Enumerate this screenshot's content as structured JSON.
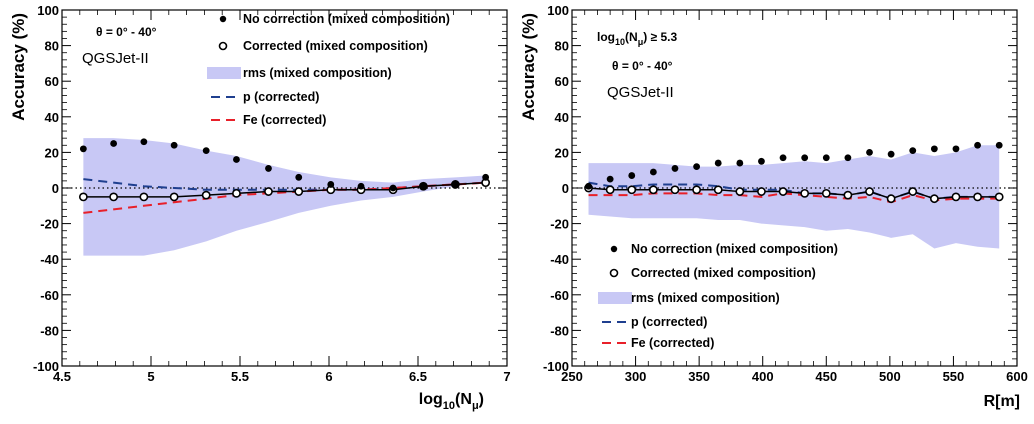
{
  "chart_data": [
    {
      "type": "line",
      "xlabel": "log10(Nμ)",
      "xlabel_parts": {
        "main": "log",
        "sub": "10",
        "open": "(N",
        "subsym": "μ",
        "close": ")"
      },
      "ylabel": "Accuracy (%)",
      "xlim": [
        4.5,
        7
      ],
      "ylim": [
        -100,
        100
      ],
      "xticks": [
        4.5,
        5,
        5.5,
        6,
        6.5,
        7
      ],
      "xtick_labels": [
        "4.5",
        "5",
        "5.5",
        "6",
        "6.5",
        "7"
      ],
      "yticks": [
        -100,
        -80,
        -60,
        -40,
        -20,
        0,
        20,
        40,
        60,
        80,
        100
      ],
      "ytick_labels": [
        "-100",
        "-80",
        "-60",
        "-40",
        "-20",
        "0",
        "20",
        "40",
        "60",
        "80",
        "100"
      ],
      "annotations": [
        {
          "id": "theta",
          "text": "θ = 0° - 40°"
        },
        {
          "id": "model",
          "text": "QGSJet-II"
        }
      ],
      "legend_position": "top-right",
      "legend": [
        {
          "key": "no_correction",
          "label": "No correction (mixed composition)"
        },
        {
          "key": "corrected",
          "label": "Corrected (mixed composition)"
        },
        {
          "key": "rms",
          "label": "rms (mixed composition)"
        },
        {
          "key": "p",
          "label": "p (corrected)"
        },
        {
          "key": "fe",
          "label": "Fe (corrected)"
        }
      ],
      "colors": {
        "rms": "#c8c8f5",
        "p": "#1f3f8f",
        "fe": "#e8202a",
        "markers": "#000000"
      },
      "zero_line": true,
      "series": {
        "no_correction": {
          "x": [
            4.62,
            4.79,
            4.96,
            5.13,
            5.31,
            5.48,
            5.66,
            5.83,
            6.01,
            6.18,
            6.36,
            6.53,
            6.71,
            6.88
          ],
          "y": [
            22,
            25,
            26,
            24,
            21,
            16,
            11,
            6,
            2,
            1,
            0,
            1,
            2,
            6
          ]
        },
        "corrected": {
          "x": [
            4.62,
            4.79,
            4.96,
            5.13,
            5.31,
            5.48,
            5.66,
            5.83,
            6.01,
            6.18,
            6.36,
            6.53,
            6.71,
            6.88
          ],
          "y": [
            -5,
            -5,
            -5,
            -5,
            -4,
            -3,
            -2,
            -2,
            -1,
            -1,
            -1,
            1,
            2,
            3
          ]
        },
        "rms_upper": {
          "x": [
            4.62,
            4.79,
            4.96,
            5.13,
            5.31,
            5.48,
            5.66,
            5.83,
            6.01,
            6.18,
            6.36,
            6.53,
            6.71,
            6.88
          ],
          "y": [
            28,
            28,
            27,
            25,
            21,
            18,
            13,
            9,
            6,
            4,
            3,
            5,
            6,
            7
          ]
        },
        "rms_lower": {
          "x": [
            4.62,
            4.79,
            4.96,
            5.13,
            5.31,
            5.48,
            5.66,
            5.83,
            6.01,
            6.18,
            6.36,
            6.53,
            6.71,
            6.88
          ],
          "y": [
            -38,
            -38,
            -38,
            -35,
            -30,
            -24,
            -19,
            -14,
            -10,
            -7,
            -5,
            -2,
            1,
            4
          ]
        },
        "p": {
          "x": [
            4.62,
            4.79,
            4.96,
            5.13,
            5.31,
            5.48,
            5.66,
            5.83,
            6.01,
            6.18,
            6.36,
            6.53,
            6.71,
            6.88
          ],
          "y": [
            5,
            3,
            1,
            0,
            -1,
            -1,
            -1,
            -1,
            -1,
            -1,
            0,
            1,
            2,
            3
          ]
        },
        "fe": {
          "x": [
            4.62,
            4.79,
            4.96,
            5.13,
            5.31,
            5.48,
            5.66,
            5.83,
            6.01,
            6.18,
            6.36,
            6.53,
            6.71,
            6.88
          ],
          "y": [
            -14,
            -12,
            -10,
            -8,
            -6,
            -4,
            -3,
            -2,
            -1,
            -1,
            0,
            1,
            2,
            3
          ]
        }
      }
    },
    {
      "type": "line",
      "xlabel": "R[m]",
      "ylabel": "Accuracy (%)",
      "xlim": [
        250,
        600
      ],
      "ylim": [
        -100,
        100
      ],
      "xticks": [
        250,
        300,
        350,
        400,
        450,
        500,
        550,
        600
      ],
      "xtick_labels": [
        "250",
        "300",
        "350",
        "400",
        "450",
        "500",
        "550",
        "600"
      ],
      "yticks": [
        -100,
        -80,
        -60,
        -40,
        -20,
        0,
        20,
        40,
        60,
        80,
        100
      ],
      "ytick_labels": [
        "-100",
        "-80",
        "-60",
        "-40",
        "-20",
        "0",
        "20",
        "40",
        "60",
        "80",
        "100"
      ],
      "annotations": [
        {
          "id": "cut",
          "text": "log10(Nμ) ≥ 5.3",
          "parts": {
            "main": "log",
            "sub": "10",
            "open": "(N",
            "subsym": "μ",
            "close": ") ≥ 5.3"
          }
        },
        {
          "id": "theta",
          "text": "θ = 0° - 40°"
        },
        {
          "id": "model",
          "text": "QGSJet-II"
        }
      ],
      "legend_position": "bottom-left",
      "legend": [
        {
          "key": "no_correction",
          "label": "No correction (mixed composition)"
        },
        {
          "key": "corrected",
          "label": "Corrected (mixed composition)"
        },
        {
          "key": "rms",
          "label": "rms (mixed composition)"
        },
        {
          "key": "p",
          "label": "p (corrected)"
        },
        {
          "key": "fe",
          "label": "Fe (corrected)"
        }
      ],
      "colors": {
        "rms": "#c8c8f5",
        "p": "#1f3f8f",
        "fe": "#e8202a",
        "markers": "#000000"
      },
      "zero_line": true,
      "series": {
        "no_correction": {
          "x": [
            263,
            280,
            297,
            314,
            331,
            348,
            365,
            382,
            399,
            416,
            433,
            450,
            467,
            484,
            501,
            518,
            535,
            552,
            569,
            586
          ],
          "y": [
            1,
            5,
            7,
            9,
            11,
            12,
            14,
            14,
            15,
            17,
            17,
            17,
            17,
            20,
            19,
            21,
            22,
            22,
            24,
            24
          ]
        },
        "corrected": {
          "x": [
            263,
            280,
            297,
            314,
            331,
            348,
            365,
            382,
            399,
            416,
            433,
            450,
            467,
            484,
            501,
            518,
            535,
            552,
            569,
            586
          ],
          "y": [
            0,
            -1,
            -1,
            -1,
            -1,
            -1,
            -1,
            -2,
            -2,
            -2,
            -3,
            -3,
            -4,
            -2,
            -6,
            -2,
            -6,
            -5,
            -5,
            -5
          ]
        },
        "rms_upper": {
          "x": [
            263,
            280,
            297,
            314,
            331,
            348,
            365,
            382,
            399,
            416,
            433,
            450,
            467,
            484,
            501,
            518,
            535,
            552,
            569,
            586
          ],
          "y": [
            14,
            14,
            14,
            14,
            13,
            12,
            12,
            13,
            13,
            14,
            15,
            14,
            16,
            18,
            16,
            20,
            18,
            20,
            24,
            24
          ]
        },
        "rms_lower": {
          "x": [
            263,
            280,
            297,
            314,
            331,
            348,
            365,
            382,
            399,
            416,
            433,
            450,
            467,
            484,
            501,
            518,
            535,
            552,
            569,
            586
          ],
          "y": [
            -15,
            -16,
            -17,
            -17,
            -17,
            -17,
            -18,
            -18,
            -20,
            -21,
            -22,
            -24,
            -23,
            -25,
            -28,
            -26,
            -34,
            -31,
            -33,
            -34
          ]
        },
        "p": {
          "x": [
            263,
            280,
            297,
            314,
            331,
            348,
            365,
            382,
            399,
            416,
            433,
            450,
            467,
            484,
            501,
            518,
            535,
            552,
            569,
            586
          ],
          "y": [
            3,
            1,
            1,
            2,
            2,
            2,
            1,
            -1,
            -1,
            -1,
            -3,
            -3,
            -4,
            -2,
            -6,
            -2,
            -6,
            -5,
            -5,
            -5
          ]
        },
        "fe": {
          "x": [
            263,
            280,
            297,
            314,
            331,
            348,
            365,
            382,
            399,
            416,
            433,
            450,
            467,
            484,
            501,
            518,
            535,
            552,
            569,
            586
          ],
          "y": [
            -4,
            -4,
            -4,
            -3,
            -3,
            -3,
            -4,
            -4,
            -5,
            -3,
            -4,
            -5,
            -6,
            -5,
            -8,
            -4,
            -7,
            -6,
            -6,
            -6
          ]
        }
      }
    }
  ]
}
